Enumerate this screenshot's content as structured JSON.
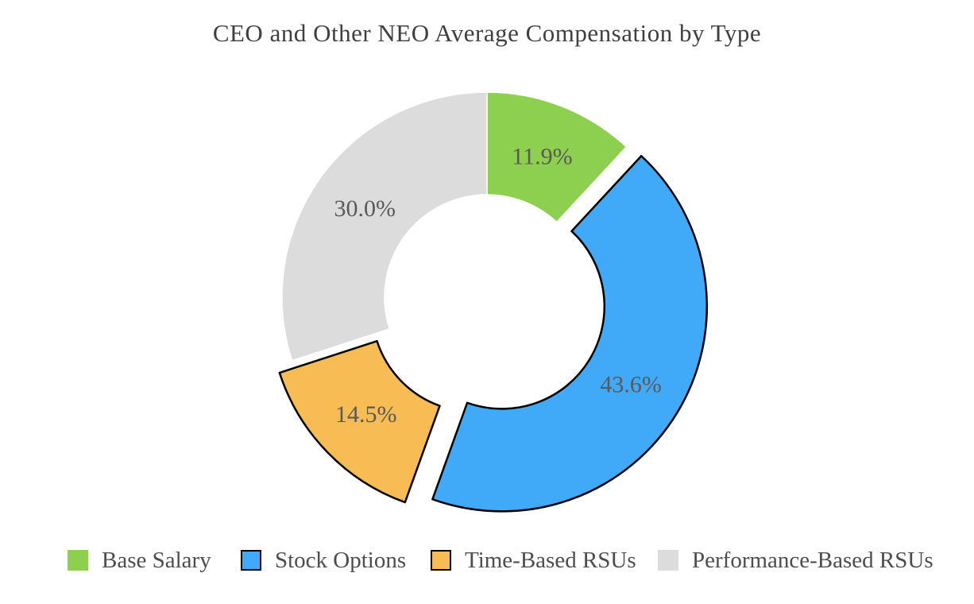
{
  "chart_data": {
    "type": "pie",
    "subtype": "donut",
    "title": "CEO and Other NEO Average Compensation by Type",
    "labels": [
      "Base Salary",
      "Stock Options",
      "Time-Based RSUs",
      "Performance-Based RSUs"
    ],
    "values": [
      11.9,
      43.6,
      14.5,
      30.0
    ],
    "pct_labels": [
      "11.9%",
      "43.6%",
      "14.5%",
      "30.0%"
    ],
    "colors": [
      "#8dd04f",
      "#41aaf8",
      "#f7bc53",
      "#dcdcdc"
    ],
    "edge_colors": [
      "none",
      "#000000",
      "#000000",
      "none"
    ],
    "exploded": [
      false,
      true,
      true,
      false
    ],
    "start_angle_deg": 0,
    "direction": "clockwise",
    "donut_hole_ratio": 0.5,
    "title_color": "#3f3f3f",
    "label_color": "#595959",
    "legend_position": "bottom",
    "legend_text_color": "#4d4d4d"
  }
}
